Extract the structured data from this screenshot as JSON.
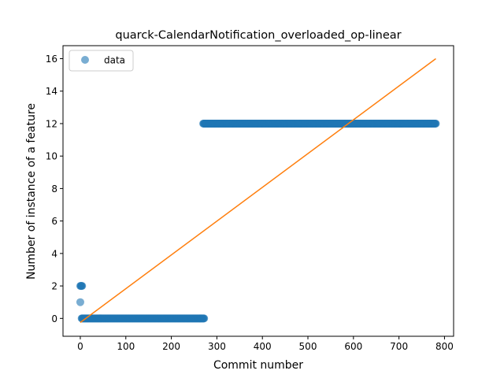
{
  "chart_data": {
    "type": "scatter",
    "title": "quarck-CalendarNotification_overloaded_op-linear",
    "xlabel": "Commit number",
    "ylabel": "Number of instance of a feature",
    "xlim": [
      -38,
      820
    ],
    "ylim": [
      -1.1,
      16.8
    ],
    "xticks": [
      0,
      100,
      200,
      300,
      400,
      500,
      600,
      700,
      800
    ],
    "yticks": [
      0,
      2,
      4,
      6,
      8,
      10,
      12,
      14,
      16
    ],
    "grid": false,
    "legend": {
      "position": "top-left",
      "entries": [
        "data"
      ]
    },
    "series": [
      {
        "name": "data",
        "kind": "scatter",
        "color": "#1f77b4",
        "alpha": 0.6,
        "isolated_points": [
          [
            0,
            2
          ],
          [
            1,
            2
          ],
          [
            2,
            2
          ],
          [
            3,
            2
          ],
          [
            4,
            2
          ],
          [
            0,
            1
          ]
        ],
        "runs": [
          {
            "x_start": 3,
            "x_end": 272,
            "y": 0
          },
          {
            "x_start": 270,
            "x_end": 781,
            "y": 12
          }
        ]
      },
      {
        "name": "",
        "kind": "line",
        "color": "#ff7f0e",
        "points": [
          [
            0,
            -0.25
          ],
          [
            781,
            16.0
          ]
        ]
      }
    ]
  }
}
